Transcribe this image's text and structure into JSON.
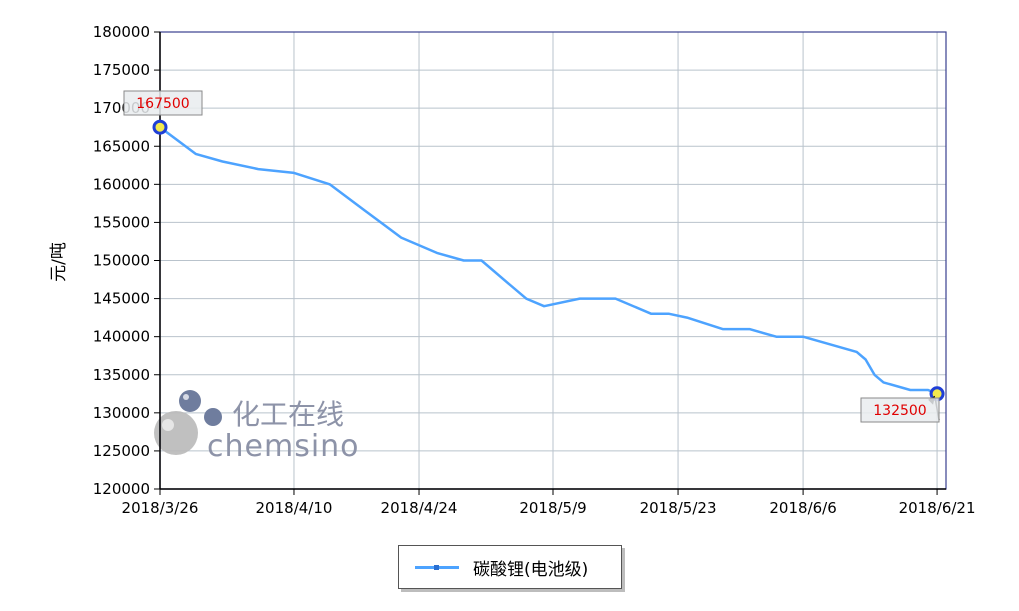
{
  "chart_data": {
    "type": "line",
    "ylabel": "元/吨",
    "ylim": [
      120000,
      180000
    ],
    "yticks": [
      120000,
      125000,
      130000,
      135000,
      140000,
      145000,
      150000,
      155000,
      160000,
      165000,
      170000,
      175000,
      180000
    ],
    "xticks": [
      "2018/3/26",
      "2018/4/10",
      "2018/4/24",
      "2018/5/9",
      "2018/5/23",
      "2018/6/6",
      "2018/6/21"
    ],
    "grid": true,
    "legend_position": "bottom",
    "series": [
      {
        "name": "碳酸锂(电池级)",
        "color": "#4da3ff",
        "x": [
          "2018/3/26",
          "2018/3/30",
          "2018/4/2",
          "2018/4/6",
          "2018/4/10",
          "2018/4/14",
          "2018/4/18",
          "2018/4/22",
          "2018/4/26",
          "2018/4/29",
          "2018/5/1",
          "2018/5/4",
          "2018/5/6",
          "2018/5/8",
          "2018/5/12",
          "2018/5/16",
          "2018/5/20",
          "2018/5/22",
          "2018/5/24",
          "2018/5/28",
          "2018/5/31",
          "2018/6/3",
          "2018/6/6",
          "2018/6/9",
          "2018/6/12",
          "2018/6/13",
          "2018/6/14",
          "2018/6/15",
          "2018/6/18",
          "2018/6/20",
          "2018/6/21"
        ],
        "y": [
          167500,
          164000,
          163000,
          162000,
          161500,
          160000,
          156500,
          153000,
          151000,
          150000,
          150000,
          147000,
          145000,
          144000,
          145000,
          145000,
          143000,
          143000,
          142500,
          141000,
          141000,
          140000,
          140000,
          139000,
          138000,
          137000,
          135000,
          134000,
          133000,
          133000,
          132500
        ]
      }
    ],
    "annotations": [
      {
        "x": "2018/3/26",
        "y": 167500,
        "text": "167500"
      },
      {
        "x": "2018/6/21",
        "y": 132500,
        "text": "132500"
      }
    ]
  },
  "watermark": {
    "cn": "化工在线",
    "en": "chemsino"
  }
}
